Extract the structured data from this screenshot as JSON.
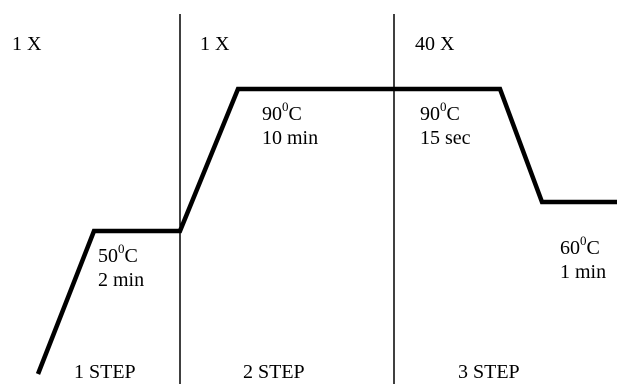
{
  "phases": [
    {
      "repeat": "1 X",
      "step": "1 STEP"
    },
    {
      "repeat": "1 X",
      "step": "2 STEP"
    },
    {
      "repeat": "40 X",
      "step": "3 STEP"
    }
  ],
  "holds": [
    {
      "temp_value": "50",
      "degree_sup": "0",
      "unit": "C",
      "duration": "2 min"
    },
    {
      "temp_value": "90",
      "degree_sup": "0",
      "unit": "C",
      "duration": "10 min"
    },
    {
      "temp_value": "90",
      "degree_sup": "0",
      "unit": "C",
      "duration": "15 sec"
    },
    {
      "temp_value": "60",
      "degree_sup": "0",
      "unit": "C",
      "duration": "1 min"
    }
  ],
  "colors": {
    "line": "#000000",
    "background": "#ffffff"
  }
}
